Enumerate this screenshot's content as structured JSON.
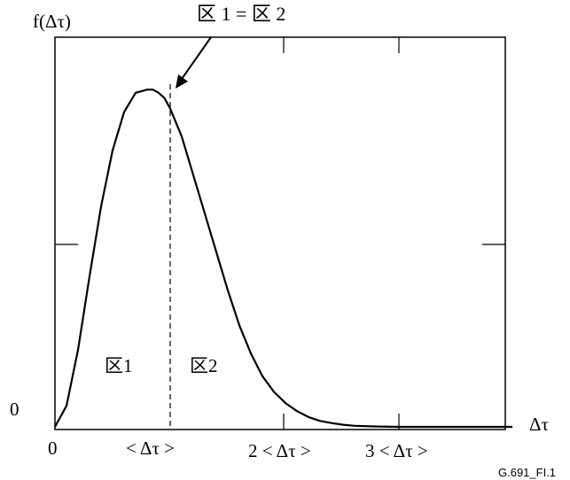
{
  "chart_data": {
    "type": "line",
    "title": "",
    "ylabel": "f(Δτ)",
    "xlabel": "Δτ",
    "annotation": "区 1 = 区 2",
    "y_zero_label": "0",
    "x_tick_labels": [
      "0",
      "< Δτ >",
      "2 < Δτ >",
      "3 < Δτ >"
    ],
    "x_tick_values": [
      0,
      1,
      2,
      3
    ],
    "xlim": [
      0,
      3.97
    ],
    "ylim": [
      0,
      1.0
    ],
    "grid": false,
    "legend": "none",
    "mean_line_x": 1,
    "region_labels": [
      "区1",
      "区2"
    ],
    "figure_id": "G.691_FI.1",
    "series": [
      {
        "x": [
          0,
          0.1,
          0.2,
          0.3,
          0.4,
          0.5,
          0.6,
          0.7,
          0.8,
          0.85,
          0.9,
          0.95,
          1.0,
          1.1,
          1.2,
          1.3,
          1.4,
          1.5,
          1.6,
          1.7,
          1.8,
          1.9,
          2.0,
          2.1,
          2.2,
          2.3,
          2.4,
          2.5,
          2.6,
          2.8,
          3.0,
          3.5,
          3.97
        ],
        "values": [
          0,
          0.06,
          0.22,
          0.43,
          0.63,
          0.79,
          0.9,
          0.955,
          0.964,
          0.964,
          0.955,
          0.94,
          0.91,
          0.83,
          0.72,
          0.61,
          0.5,
          0.39,
          0.29,
          0.21,
          0.145,
          0.1,
          0.068,
          0.045,
          0.028,
          0.017,
          0.011,
          0.006,
          0.003,
          0.001,
          0,
          0,
          0
        ]
      }
    ]
  }
}
